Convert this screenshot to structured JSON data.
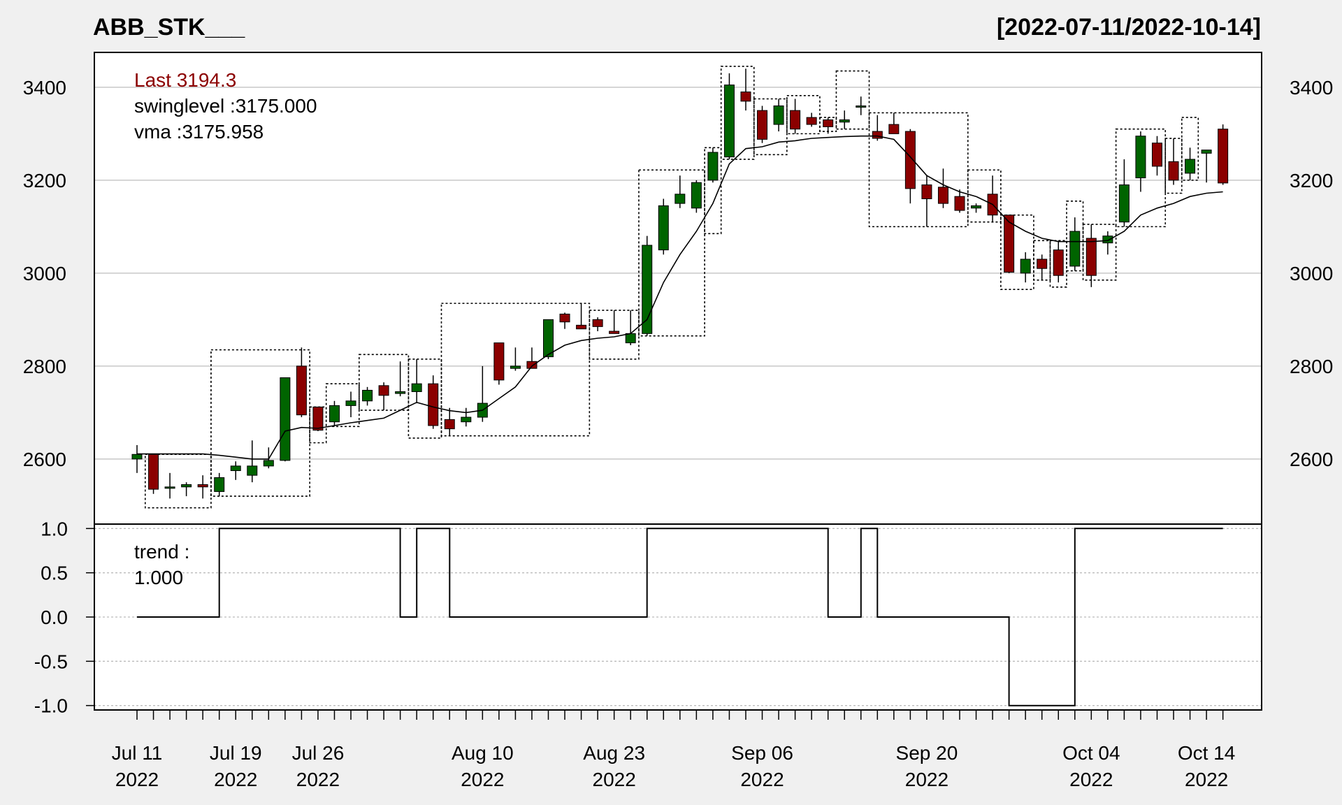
{
  "title": "ABB_STK___",
  "date_range": "[2022-07-11/2022-10-14]",
  "legend": {
    "last": "Last 3194.3",
    "swinglevel": "swinglevel :3175.000",
    "vma": "vma :3175.958",
    "trend_label": "trend :",
    "trend_value": "1.000"
  },
  "colors": {
    "up": "#006400",
    "down": "#8b0000",
    "last_text": "#8b0000",
    "background": "#f0f0f0",
    "panel": "#ffffff",
    "grid": "#c8c8c8"
  },
  "x_ticks": [
    {
      "index": 0,
      "line1": "Jul 11",
      "line2": "2022"
    },
    {
      "index": 6,
      "line1": "Jul 19",
      "line2": "2022"
    },
    {
      "index": 11,
      "line1": "Jul 26",
      "line2": "2022"
    },
    {
      "index": 21,
      "line1": "Aug 10",
      "line2": "2022"
    },
    {
      "index": 29,
      "line1": "Aug 23",
      "line2": "2022"
    },
    {
      "index": 38,
      "line1": "Sep 06",
      "line2": "2022"
    },
    {
      "index": 48,
      "line1": "Sep 20",
      "line2": "2022"
    },
    {
      "index": 58,
      "line1": "Oct 04",
      "line2": "2022"
    },
    {
      "index": 65,
      "line1": "Oct 14",
      "line2": "2022"
    }
  ],
  "chart_data": [
    {
      "type": "candlestick",
      "title": "ABB_STK___",
      "ylim": [
        2460,
        3475
      ],
      "yticks": [
        2600,
        2800,
        3000,
        3200,
        3400
      ],
      "grid": true,
      "candles": [
        [
          2600,
          2630,
          2570,
          2610
        ],
        [
          2610,
          2610,
          2525,
          2535
        ],
        [
          2540,
          2570,
          2515,
          2540
        ],
        [
          2540,
          2550,
          2520,
          2545
        ],
        [
          2545,
          2565,
          2515,
          2540
        ],
        [
          2530,
          2570,
          2520,
          2560
        ],
        [
          2575,
          2595,
          2555,
          2585
        ],
        [
          2565,
          2640,
          2550,
          2585
        ],
        [
          2585,
          2625,
          2580,
          2597
        ],
        [
          2597,
          2765,
          2595,
          2775
        ],
        [
          2800,
          2840,
          2690,
          2695
        ],
        [
          2712,
          2712,
          2660,
          2662
        ],
        [
          2680,
          2725,
          2670,
          2715
        ],
        [
          2715,
          2745,
          2690,
          2725
        ],
        [
          2725,
          2755,
          2715,
          2748
        ],
        [
          2758,
          2765,
          2705,
          2737
        ],
        [
          2741,
          2810,
          2735,
          2745
        ],
        [
          2745,
          2815,
          2720,
          2762
        ],
        [
          2762,
          2780,
          2665,
          2672
        ],
        [
          2685,
          2710,
          2650,
          2665
        ],
        [
          2680,
          2710,
          2670,
          2690
        ],
        [
          2690,
          2800,
          2680,
          2720
        ],
        [
          2850,
          2850,
          2760,
          2770
        ],
        [
          2795,
          2840,
          2790,
          2800
        ],
        [
          2810,
          2840,
          2795,
          2795
        ],
        [
          2820,
          2900,
          2815,
          2900
        ],
        [
          2912,
          2915,
          2880,
          2895
        ],
        [
          2888,
          2935,
          2880,
          2880
        ],
        [
          2900,
          2905,
          2875,
          2885
        ],
        [
          2875,
          2920,
          2870,
          2870
        ],
        [
          2850,
          2920,
          2845,
          2870
        ],
        [
          2870,
          3080,
          2865,
          3060
        ],
        [
          3050,
          3160,
          3040,
          3145
        ],
        [
          3150,
          3210,
          3140,
          3170
        ],
        [
          3140,
          3200,
          3130,
          3195
        ],
        [
          3200,
          3270,
          3195,
          3260
        ],
        [
          3250,
          3430,
          3245,
          3405
        ],
        [
          3390,
          3440,
          3350,
          3370
        ],
        [
          3350,
          3360,
          3280,
          3288
        ],
        [
          3320,
          3375,
          3305,
          3360
        ],
        [
          3350,
          3375,
          3300,
          3310
        ],
        [
          3335,
          3345,
          3315,
          3320
        ],
        [
          3330,
          3335,
          3300,
          3315
        ],
        [
          3325,
          3350,
          3310,
          3330
        ],
        [
          3360,
          3380,
          3340,
          3360
        ],
        [
          3305,
          3340,
          3285,
          3290
        ],
        [
          3320,
          3345,
          3300,
          3300
        ],
        [
          3305,
          3310,
          3150,
          3182
        ],
        [
          3190,
          3210,
          3100,
          3160
        ],
        [
          3185,
          3225,
          3140,
          3150
        ],
        [
          3165,
          3180,
          3130,
          3135
        ],
        [
          3140,
          3150,
          3130,
          3145
        ],
        [
          3170,
          3210,
          3110,
          3125
        ],
        [
          3125,
          3125,
          3000,
          3002
        ],
        [
          3000,
          3045,
          2980,
          3030
        ],
        [
          3030,
          3040,
          2985,
          3010
        ],
        [
          3050,
          3070,
          2980,
          2995
        ],
        [
          3015,
          3120,
          3005,
          3090
        ],
        [
          3075,
          3105,
          2970,
          2995
        ],
        [
          3065,
          3090,
          3040,
          3080
        ],
        [
          3110,
          3245,
          3100,
          3190
        ],
        [
          3205,
          3305,
          3175,
          3295
        ],
        [
          3280,
          3295,
          3210,
          3230
        ],
        [
          3240,
          3290,
          3190,
          3200
        ],
        [
          3215,
          3270,
          3200,
          3245
        ],
        [
          3258,
          3265,
          3195,
          3265
        ],
        [
          3310,
          3320,
          3190,
          3194
        ]
      ],
      "vma": [
        2611,
        2611,
        2611,
        2611,
        2611,
        2608,
        2604,
        2600,
        2600,
        2660,
        2668,
        2666,
        2672,
        2678,
        2683,
        2688,
        2705,
        2722,
        2712,
        2704,
        2700,
        2705,
        2730,
        2755,
        2800,
        2825,
        2845,
        2855,
        2860,
        2863,
        2870,
        2900,
        2980,
        3040,
        3090,
        3150,
        3235,
        3268,
        3272,
        3282,
        3285,
        3290,
        3292,
        3294,
        3295,
        3295,
        3288,
        3250,
        3210,
        3190,
        3175,
        3165,
        3148,
        3110,
        3090,
        3075,
        3068,
        3068,
        3068,
        3070,
        3090,
        3125,
        3140,
        3150,
        3165,
        3172,
        3175
      ],
      "swing_boxes": [
        {
          "from": 1,
          "to": 4,
          "low": 2495
        },
        {
          "from": 5,
          "to": 10,
          "high": 2835
        },
        {
          "from": 11,
          "to": 11,
          "low": 2635
        },
        {
          "from": 12,
          "to": 13,
          "high": 2762
        },
        {
          "from": 14,
          "to": 16,
          "high": 2825
        },
        {
          "from": 17,
          "to": 18,
          "low": 2645
        },
        {
          "from": 19,
          "to": 27,
          "high": 2935
        },
        {
          "from": 28,
          "to": 30,
          "low": 2815
        },
        {
          "from": 31,
          "to": 34,
          "high": 3222
        },
        {
          "from": 35,
          "to": 35,
          "low": 3085
        },
        {
          "from": 36,
          "to": 37,
          "high": 3445
        },
        {
          "from": 38,
          "to": 39,
          "low": 3255
        },
        {
          "from": 40,
          "to": 41,
          "high": 3382
        },
        {
          "from": 42,
          "to": 42,
          "low": 3305
        },
        {
          "from": 43,
          "to": 44,
          "high": 3435
        },
        {
          "from": 45,
          "to": 50,
          "low": 3100
        },
        {
          "from": 51,
          "to": 52,
          "high": 3222
        },
        {
          "from": 53,
          "to": 54,
          "low": 2965
        },
        {
          "from": 55,
          "to": 55,
          "high": 3070
        },
        {
          "from": 56,
          "to": 56,
          "low": 2970
        },
        {
          "from": 57,
          "to": 57,
          "high": 3155
        },
        {
          "from": 58,
          "to": 59,
          "low": 2985
        },
        {
          "from": 60,
          "to": 62,
          "high": 3310
        },
        {
          "from": 63,
          "to": 63,
          "low": 3172
        },
        {
          "from": 64,
          "to": 64,
          "high": 3335
        }
      ]
    },
    {
      "type": "line",
      "title": "trend",
      "ylim": [
        -1.05,
        1.05
      ],
      "yticks": [
        1.0,
        0.5,
        0.0,
        -0.5,
        -1.0
      ],
      "ytick_labels": [
        "1.0",
        "0.5",
        "0.0",
        "-0.5",
        "-1.0"
      ],
      "grid": true,
      "values": [
        0,
        0,
        0,
        0,
        0,
        1,
        1,
        1,
        1,
        1,
        1,
        1,
        1,
        1,
        1,
        1,
        0,
        1,
        1,
        0,
        0,
        0,
        0,
        0,
        0,
        0,
        0,
        0,
        0,
        0,
        0,
        1,
        1,
        1,
        1,
        1,
        1,
        1,
        1,
        1,
        1,
        1,
        0,
        0,
        1,
        0,
        0,
        0,
        0,
        0,
        0,
        0,
        0,
        -1,
        -1,
        -1,
        -1,
        1,
        1,
        1,
        1,
        1,
        1,
        1,
        1,
        1,
        1
      ]
    }
  ]
}
